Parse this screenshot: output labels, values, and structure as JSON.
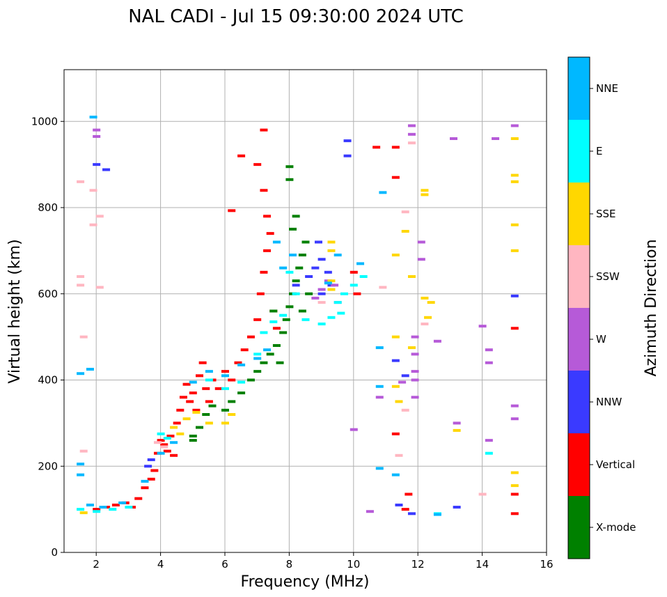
{
  "chart_data": {
    "type": "scatter",
    "title": "NAL CADI - Jul 15 09:30:00 2024 UTC",
    "xlabel": "Frequency (MHz)",
    "ylabel": "Virtual height (km)",
    "xlim": [
      1,
      16
    ],
    "ylim": [
      0,
      1120
    ],
    "xticks": [
      2,
      4,
      6,
      8,
      10,
      12,
      14,
      16
    ],
    "yticks": [
      0,
      200,
      400,
      600,
      800,
      1000
    ],
    "grid": true,
    "colorbar": {
      "title": "Azimuth Direction",
      "categories": [
        {
          "label": "X-mode",
          "color": "#008000"
        },
        {
          "label": "Vertical",
          "color": "#ff0000"
        },
        {
          "label": "NNW",
          "color": "#3a3aff"
        },
        {
          "label": "W",
          "color": "#b65ad8"
        },
        {
          "label": "SSW",
          "color": "#ffb6c1"
        },
        {
          "label": "SSE",
          "color": "#ffd700"
        },
        {
          "label": "E",
          "color": "#00ffff"
        },
        {
          "label": "NNE",
          "color": "#00b8ff"
        }
      ]
    },
    "series": [
      {
        "name": "Vertical",
        "points": [
          [
            2.0,
            100
          ],
          [
            2.3,
            105
          ],
          [
            2.6,
            110
          ],
          [
            2.9,
            115
          ],
          [
            3.1,
            105
          ],
          [
            3.3,
            125
          ],
          [
            3.5,
            150
          ],
          [
            3.7,
            170
          ],
          [
            3.8,
            190
          ],
          [
            3.9,
            230
          ],
          [
            4.0,
            260
          ],
          [
            4.1,
            250
          ],
          [
            4.2,
            235
          ],
          [
            4.3,
            270
          ],
          [
            4.4,
            225
          ],
          [
            4.5,
            300
          ],
          [
            4.6,
            330
          ],
          [
            4.7,
            360
          ],
          [
            4.8,
            390
          ],
          [
            4.9,
            350
          ],
          [
            5.0,
            370
          ],
          [
            5.1,
            330
          ],
          [
            5.2,
            410
          ],
          [
            5.3,
            440
          ],
          [
            5.4,
            380
          ],
          [
            5.5,
            350
          ],
          [
            5.6,
            400
          ],
          [
            5.8,
            380
          ],
          [
            6.0,
            420
          ],
          [
            6.2,
            400
          ],
          [
            6.4,
            440
          ],
          [
            6.6,
            470
          ],
          [
            6.8,
            500
          ],
          [
            7.0,
            540
          ],
          [
            7.1,
            600
          ],
          [
            7.2,
            650
          ],
          [
            7.3,
            700
          ],
          [
            7.4,
            740
          ],
          [
            7.3,
            780
          ],
          [
            7.2,
            840
          ],
          [
            7.5,
            560
          ],
          [
            7.6,
            520
          ],
          [
            6.5,
            920
          ],
          [
            6.2,
            793
          ],
          [
            7.0,
            900
          ],
          [
            7.2,
            980
          ],
          [
            10.0,
            650
          ],
          [
            10.1,
            600
          ],
          [
            11.3,
            275
          ],
          [
            11.3,
            870
          ],
          [
            11.6,
            100
          ],
          [
            11.7,
            135
          ],
          [
            15.0,
            520
          ],
          [
            15.0,
            135
          ],
          [
            15.0,
            90
          ],
          [
            11.3,
            940
          ],
          [
            10.7,
            940
          ]
        ]
      },
      {
        "name": "X-mode",
        "points": [
          [
            5.0,
            270
          ],
          [
            5.2,
            290
          ],
          [
            5.4,
            320
          ],
          [
            5.6,
            340
          ],
          [
            6.0,
            330
          ],
          [
            6.2,
            350
          ],
          [
            6.5,
            370
          ],
          [
            6.8,
            400
          ],
          [
            7.0,
            420
          ],
          [
            7.2,
            440
          ],
          [
            7.4,
            460
          ],
          [
            7.6,
            480
          ],
          [
            7.8,
            510
          ],
          [
            7.9,
            540
          ],
          [
            8.0,
            570
          ],
          [
            8.1,
            600
          ],
          [
            8.2,
            630
          ],
          [
            8.3,
            660
          ],
          [
            8.4,
            690
          ],
          [
            8.5,
            720
          ],
          [
            8.1,
            750
          ],
          [
            8.2,
            780
          ],
          [
            8.0,
            895
          ],
          [
            8.0,
            865
          ],
          [
            7.5,
            560
          ],
          [
            7.7,
            440
          ],
          [
            5.0,
            260
          ],
          [
            8.4,
            560
          ],
          [
            8.6,
            600
          ]
        ]
      },
      {
        "name": "NNW",
        "points": [
          [
            3.6,
            200
          ],
          [
            3.7,
            215
          ],
          [
            8.6,
            640
          ],
          [
            8.8,
            660
          ],
          [
            9.0,
            680
          ],
          [
            9.2,
            650
          ],
          [
            9.3,
            620
          ],
          [
            8.9,
            720
          ],
          [
            9.0,
            600
          ],
          [
            2.0,
            900
          ],
          [
            2.3,
            888
          ],
          [
            9.8,
            955
          ],
          [
            9.8,
            920
          ],
          [
            11.3,
            445
          ],
          [
            11.6,
            410
          ],
          [
            11.4,
            110
          ],
          [
            11.8,
            90
          ],
          [
            13.2,
            105
          ],
          [
            15.0,
            595
          ],
          [
            8.2,
            620
          ]
        ]
      },
      {
        "name": "W",
        "points": [
          [
            8.8,
            590
          ],
          [
            9.0,
            610
          ],
          [
            9.2,
            630
          ],
          [
            9.4,
            620
          ],
          [
            9.5,
            580
          ],
          [
            11.8,
            990
          ],
          [
            11.8,
            970
          ],
          [
            11.9,
            500
          ],
          [
            11.9,
            460
          ],
          [
            11.9,
            420
          ],
          [
            11.9,
            400
          ],
          [
            12.1,
            680
          ],
          [
            12.1,
            720
          ],
          [
            12.6,
            490
          ],
          [
            13.1,
            960
          ],
          [
            14.4,
            960
          ],
          [
            14.2,
            470
          ],
          [
            14.2,
            440
          ],
          [
            14.2,
            260
          ],
          [
            15.0,
            340
          ],
          [
            15.0,
            310
          ],
          [
            15.0,
            990
          ],
          [
            13.2,
            300
          ],
          [
            10.8,
            360
          ],
          [
            11.5,
            395
          ],
          [
            2.0,
            980
          ],
          [
            2.0,
            965
          ],
          [
            10.0,
            285
          ],
          [
            10.5,
            95
          ],
          [
            11.9,
            360
          ],
          [
            14.0,
            525
          ]
        ]
      },
      {
        "name": "SSW",
        "points": [
          [
            1.5,
            860
          ],
          [
            1.5,
            640
          ],
          [
            1.5,
            620
          ],
          [
            1.6,
            500
          ],
          [
            1.6,
            235
          ],
          [
            1.9,
            760
          ],
          [
            1.9,
            840
          ],
          [
            2.1,
            780
          ],
          [
            2.1,
            615
          ],
          [
            3.9,
            255
          ],
          [
            4.1,
            245
          ],
          [
            11.6,
            790
          ],
          [
            11.8,
            950
          ],
          [
            11.4,
            225
          ],
          [
            11.6,
            330
          ],
          [
            14.0,
            135
          ],
          [
            9.0,
            580
          ],
          [
            10.9,
            615
          ],
          [
            12.2,
            530
          ]
        ]
      },
      {
        "name": "SSE",
        "points": [
          [
            1.6,
            92
          ],
          [
            4.4,
            290
          ],
          [
            4.6,
            275
          ],
          [
            4.8,
            310
          ],
          [
            5.1,
            325
          ],
          [
            5.5,
            300
          ],
          [
            6.0,
            300
          ],
          [
            6.2,
            320
          ],
          [
            9.3,
            720
          ],
          [
            9.3,
            700
          ],
          [
            9.3,
            630
          ],
          [
            9.3,
            610
          ],
          [
            11.3,
            690
          ],
          [
            11.3,
            500
          ],
          [
            11.3,
            385
          ],
          [
            11.4,
            350
          ],
          [
            11.6,
            745
          ],
          [
            11.8,
            640
          ],
          [
            12.2,
            840
          ],
          [
            12.2,
            830
          ],
          [
            12.2,
            590
          ],
          [
            12.3,
            545
          ],
          [
            12.4,
            580
          ],
          [
            13.2,
            283
          ],
          [
            15.0,
            960
          ],
          [
            15.0,
            875
          ],
          [
            15.0,
            860
          ],
          [
            15.0,
            760
          ],
          [
            15.0,
            700
          ],
          [
            15.0,
            185
          ],
          [
            15.0,
            155
          ],
          [
            11.8,
            475
          ]
        ]
      },
      {
        "name": "E",
        "points": [
          [
            1.5,
            100
          ],
          [
            2.0,
            95
          ],
          [
            2.5,
            100
          ],
          [
            3.0,
            105
          ],
          [
            4.0,
            275
          ],
          [
            4.2,
            265
          ],
          [
            5.5,
            400
          ],
          [
            6.0,
            380
          ],
          [
            6.5,
            395
          ],
          [
            7.0,
            460
          ],
          [
            7.2,
            510
          ],
          [
            7.5,
            535
          ],
          [
            7.8,
            550
          ],
          [
            8.0,
            650
          ],
          [
            8.5,
            540
          ],
          [
            9.0,
            530
          ],
          [
            9.3,
            545
          ],
          [
            9.5,
            580
          ],
          [
            9.7,
            600
          ],
          [
            10.0,
            620
          ],
          [
            10.3,
            640
          ],
          [
            12.6,
            90
          ],
          [
            14.2,
            230
          ],
          [
            9.6,
            555
          ],
          [
            8.2,
            600
          ]
        ]
      },
      {
        "name": "NNE",
        "points": [
          [
            1.5,
            180
          ],
          [
            1.5,
            205
          ],
          [
            1.5,
            415
          ],
          [
            1.8,
            425
          ],
          [
            1.8,
            110
          ],
          [
            2.2,
            105
          ],
          [
            2.8,
            115
          ],
          [
            3.5,
            165
          ],
          [
            4.0,
            230
          ],
          [
            4.4,
            255
          ],
          [
            5.0,
            395
          ],
          [
            5.5,
            420
          ],
          [
            6.0,
            410
          ],
          [
            6.5,
            435
          ],
          [
            7.0,
            450
          ],
          [
            7.3,
            470
          ],
          [
            7.6,
            720
          ],
          [
            7.8,
            660
          ],
          [
            8.1,
            690
          ],
          [
            9.5,
            690
          ],
          [
            10.2,
            670
          ],
          [
            10.9,
            835
          ],
          [
            10.8,
            475
          ],
          [
            10.8,
            385
          ],
          [
            10.8,
            195
          ],
          [
            11.3,
            180
          ],
          [
            12.6,
            88
          ],
          [
            1.9,
            1010
          ],
          [
            9.2,
            625
          ]
        ]
      }
    ]
  }
}
